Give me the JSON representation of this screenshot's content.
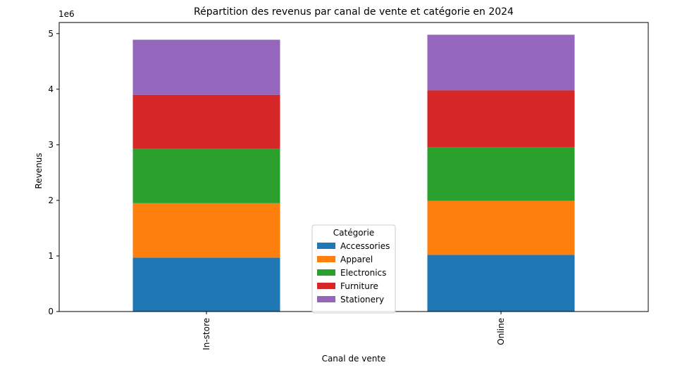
{
  "chart_data": {
    "type": "bar",
    "stacked": true,
    "title": "Répartition des revenus par canal de vente et catégorie en 2024",
    "xlabel": "Canal de vente",
    "ylabel": "Revenus",
    "y_offset_label": "1e6",
    "categories": [
      "In-store",
      "Online"
    ],
    "ylim": [
      0,
      5200000
    ],
    "yticks": [
      0,
      1000000,
      2000000,
      3000000,
      4000000,
      5000000
    ],
    "ytick_labels": [
      "0",
      "1",
      "2",
      "3",
      "4",
      "5"
    ],
    "grid": false,
    "legend_title": "Catégorie",
    "legend_position": "lower center",
    "series": [
      {
        "name": "Accessories",
        "color": "#1f77b4",
        "values": [
          970000,
          1020000
        ]
      },
      {
        "name": "Apparel",
        "color": "#ff7f0e",
        "values": [
          980000,
          970000
        ]
      },
      {
        "name": "Electronics",
        "color": "#2ca02c",
        "values": [
          980000,
          970000
        ]
      },
      {
        "name": "Furniture",
        "color": "#d62728",
        "values": [
          970000,
          1020000
        ]
      },
      {
        "name": "Stationery",
        "color": "#9467bd",
        "values": [
          990000,
          1000000
        ]
      }
    ]
  }
}
